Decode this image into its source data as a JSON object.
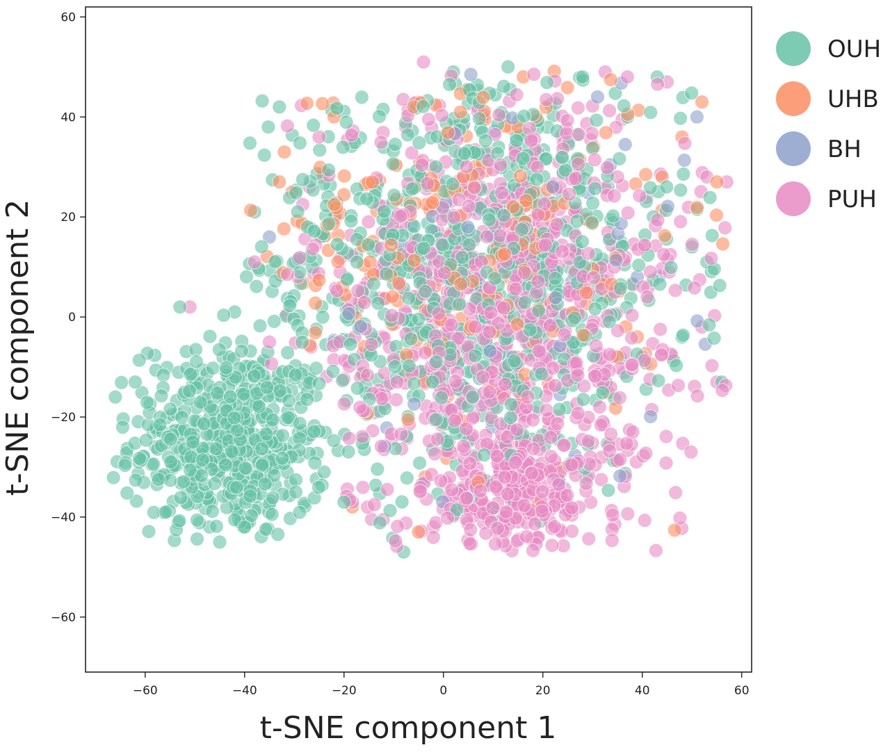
{
  "chart_data": {
    "type": "scatter",
    "title": "",
    "xlabel": "t-SNE component 1",
    "ylabel": "t-SNE component 2",
    "xlim": [
      -72,
      62
    ],
    "ylim": [
      -71,
      62
    ],
    "xticks": [
      -60,
      -40,
      -20,
      0,
      20,
      40,
      60
    ],
    "yticks": [
      -60,
      -40,
      -20,
      0,
      20,
      40,
      60
    ],
    "xtick_labels": [
      "−60",
      "−40",
      "−20",
      "0",
      "20",
      "40",
      "60"
    ],
    "ytick_labels": [
      "−60",
      "−40",
      "−20",
      "0",
      "20",
      "40",
      "60"
    ],
    "grid": false,
    "legend_position": "outside-right-top",
    "point_opacity": 0.6,
    "series": [
      {
        "name": "OUH",
        "color": "#66c2a5",
        "clusters": [
          {
            "cx": -43,
            "cy": -25,
            "sx": 10,
            "sy": 10,
            "n": 520
          },
          {
            "cx": 5,
            "cy": 10,
            "sx": 22,
            "sy": 22,
            "n": 780
          }
        ],
        "points": [
          [
            -66,
            -16
          ],
          [
            -62,
            -13
          ],
          [
            -53,
            2
          ],
          [
            -42,
            1
          ],
          [
            -45,
            -45
          ],
          [
            -39,
            -41
          ],
          [
            -8,
            -47
          ],
          [
            2,
            49
          ],
          [
            13,
            50
          ],
          [
            43,
            48
          ],
          [
            48,
            -4
          ],
          [
            -33,
            42
          ],
          [
            -38,
            21
          ],
          [
            28,
            48
          ],
          [
            50,
            14
          ],
          [
            53,
            11
          ],
          [
            56,
            -13
          ],
          [
            -36,
            -32
          ],
          [
            -30,
            -25
          ],
          [
            -24,
            -31
          ],
          [
            -20,
            -37
          ]
        ]
      },
      {
        "name": "UHB",
        "color": "#fc8d62",
        "clusters": [
          {
            "cx": 5,
            "cy": 15,
            "sx": 20,
            "sy": 20,
            "n": 240
          }
        ],
        "points": [
          [
            -32,
            33
          ],
          [
            -33,
            27
          ],
          [
            -22,
            40
          ],
          [
            -5,
            -43
          ],
          [
            48,
            36
          ],
          [
            52,
            43
          ],
          [
            39,
            -4
          ],
          [
            44,
            28
          ],
          [
            55,
            27
          ],
          [
            7,
            -33
          ],
          [
            19,
            -37
          ],
          [
            -6,
            42
          ]
        ]
      },
      {
        "name": "BH",
        "color": "#8da0cb",
        "clusters": [
          {
            "cx": 10,
            "cy": 10,
            "sx": 20,
            "sy": 22,
            "n": 60
          }
        ],
        "points": [
          [
            31,
            44
          ],
          [
            -35,
            16
          ],
          [
            3,
            -9
          ],
          [
            14,
            -8
          ],
          [
            22,
            26
          ],
          [
            51,
            40
          ],
          [
            -22,
            -5
          ],
          [
            39,
            8
          ]
        ]
      },
      {
        "name": "PUH",
        "color": "#e78ac3",
        "clusters": [
          {
            "cx": 12,
            "cy": 0,
            "sx": 20,
            "sy": 24,
            "n": 880
          },
          {
            "cx": 15,
            "cy": -35,
            "sx": 9,
            "sy": 6,
            "n": 220
          }
        ],
        "points": [
          [
            -4,
            51
          ],
          [
            -51,
            2
          ],
          [
            37,
            48
          ],
          [
            45,
            47
          ],
          [
            53,
            28
          ],
          [
            57,
            27
          ],
          [
            55,
            -13
          ],
          [
            52,
            -2
          ],
          [
            41,
            4
          ],
          [
            -35,
            -5
          ],
          [
            -38,
            11
          ],
          [
            -25,
            36
          ],
          [
            -27,
            26
          ],
          [
            12,
            -45
          ],
          [
            -2,
            -42
          ]
        ]
      }
    ]
  }
}
